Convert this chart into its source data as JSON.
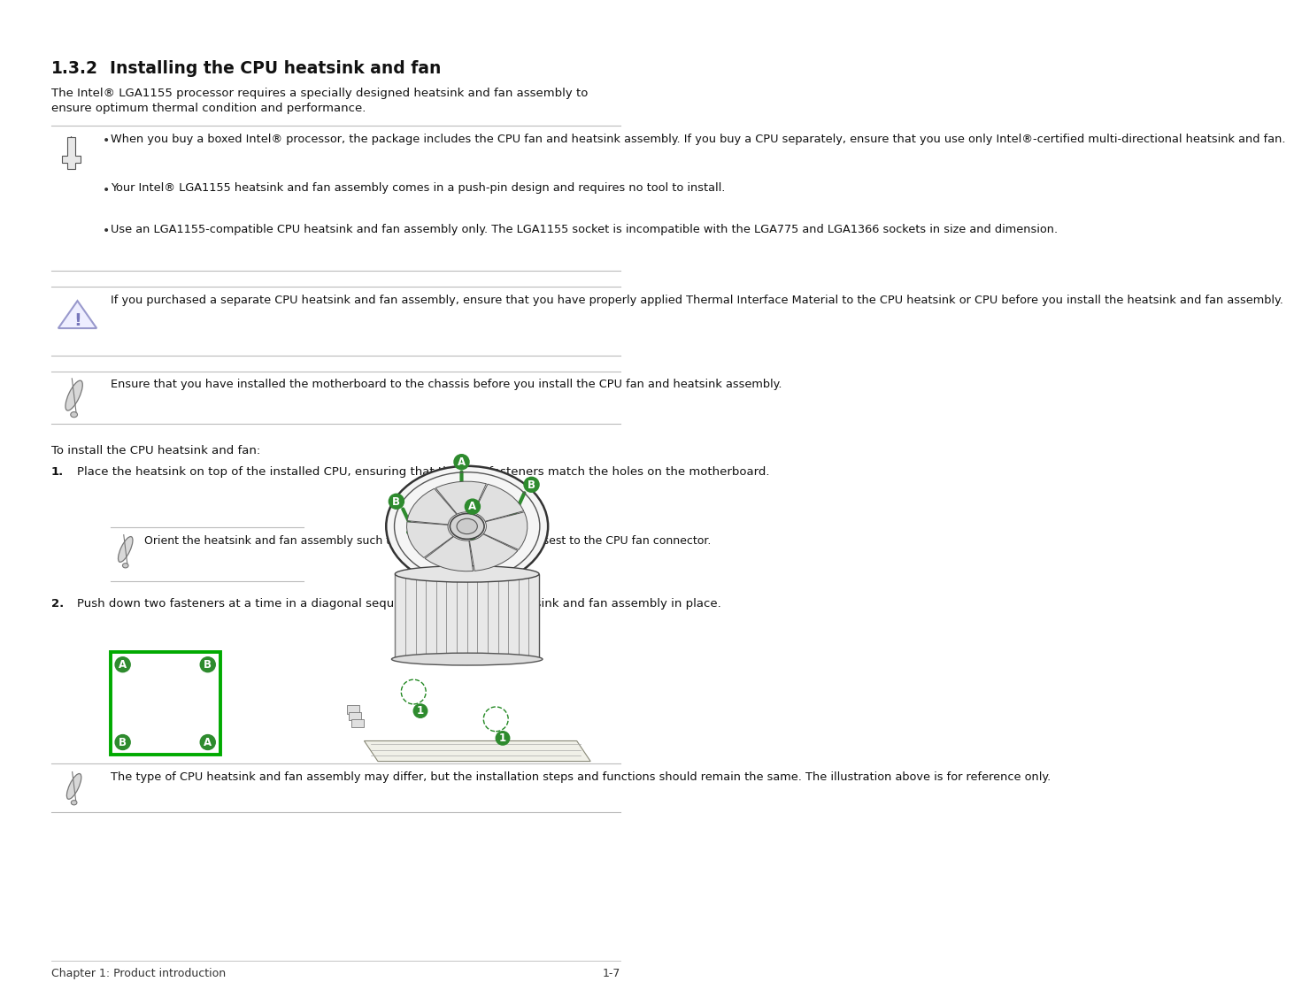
{
  "title_num": "1.3.2",
  "title_text": "Installing the CPU heatsink and fan",
  "bg_color": "#ffffff",
  "text_color": "#111111",
  "body_fs": 9.5,
  "small_fs": 8.8,
  "page_footer_left": "Chapter 1: Product introduction",
  "page_footer_right": "1-7",
  "intro_text": "The Intel® LGA1155 processor requires a specially designed heatsink and fan assembly to\nensure optimum thermal condition and performance.",
  "note1_bullets": [
    "When you buy a boxed Intel® processor, the package includes the CPU fan and heatsink assembly. If you buy a CPU separately, ensure that you use only Intel®-certified multi-directional heatsink and fan.",
    "Your Intel® LGA1155 heatsink and fan assembly comes in a push-pin design and requires no tool to install.",
    "Use an LGA1155-compatible CPU heatsink and fan assembly only. The LGA1155 socket is incompatible with the LGA775 and LGA1366 sockets in size and dimension."
  ],
  "warning_text": "If you purchased a separate CPU heatsink and fan assembly, ensure that you have properly applied Thermal Interface Material to the CPU heatsink or CPU before you install the heatsink and fan assembly.",
  "note2_text": "Ensure that you have installed the motherboard to the chassis before you install the CPU fan and heatsink assembly.",
  "to_install_text": "To install the CPU heatsink and fan:",
  "step1_text": "Place the heatsink on top of the installed CPU, ensuring that the four fasteners match the holes on the motherboard.",
  "step1_note": "Orient the heatsink and fan assembly such that the CPU fan cable is closest to the CPU fan connector.",
  "step2_text": "Push down two fasteners at a time in a diagonal sequence to secure the heatsink and fan assembly in place.",
  "final_note": "The type of CPU heatsink and fan assembly may differ, but the installation steps and functions should remain the same. The illustration above is for reference only.",
  "line_color": "#bbbbbb",
  "green_color": "#2e8b2e",
  "red_arrow_color": "#cc0000",
  "border_green": "#00aa00"
}
